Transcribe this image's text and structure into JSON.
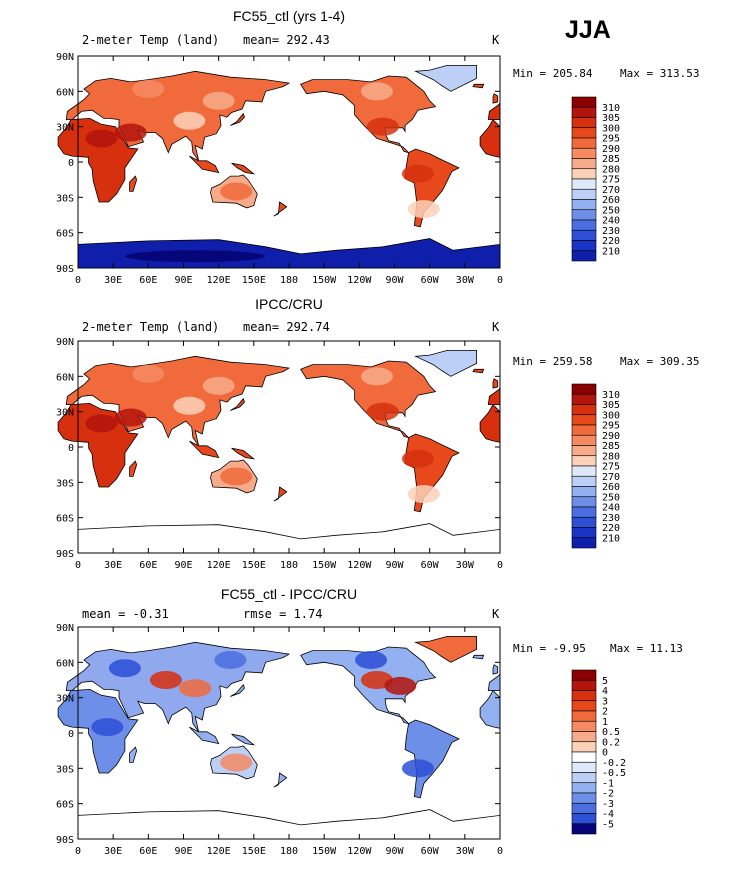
{
  "season": "JJA",
  "units": "K",
  "chart_data": [
    {
      "type": "heatmap",
      "title": "FC55_ctl (yrs 1-4)",
      "left_subtitle": "2-meter Temp (land)",
      "center_subtitle": "mean= 292.43",
      "units": "K",
      "min_label": "Min = 205.84",
      "max_label": "Max = 313.53",
      "stats": {
        "mean": 292.43,
        "min": 205.84,
        "max": 313.53
      },
      "x_ticks": [
        "0",
        "30E",
        "60E",
        "90E",
        "120E",
        "150E",
        "180",
        "150W",
        "120W",
        "90W",
        "60W",
        "30W",
        "0"
      ],
      "y_ticks": [
        "90N",
        "60N",
        "30N",
        "0",
        "30S",
        "60S",
        "90S"
      ],
      "xlim": [
        0,
        360
      ],
      "ylim": [
        -90,
        90
      ],
      "colorbar_levels": [
        "310",
        "305",
        "300",
        "295",
        "290",
        "285",
        "280",
        "275",
        "270",
        "260",
        "250",
        "240",
        "230",
        "220",
        "210"
      ]
    },
    {
      "type": "heatmap",
      "title": "IPCC/CRU",
      "left_subtitle": "2-meter Temp (land)",
      "center_subtitle": "mean= 292.74",
      "units": "K",
      "min_label": "Min = 259.58",
      "max_label": "Max = 309.35",
      "stats": {
        "mean": 292.74,
        "min": 259.58,
        "max": 309.35
      },
      "x_ticks": [
        "0",
        "30E",
        "60E",
        "90E",
        "120E",
        "150E",
        "180",
        "150W",
        "120W",
        "90W",
        "60W",
        "30W",
        "0"
      ],
      "y_ticks": [
        "90N",
        "60N",
        "30N",
        "0",
        "30S",
        "60S",
        "90S"
      ],
      "xlim": [
        0,
        360
      ],
      "ylim": [
        -90,
        90
      ],
      "colorbar_levels": [
        "310",
        "305",
        "300",
        "295",
        "290",
        "285",
        "280",
        "275",
        "270",
        "260",
        "250",
        "240",
        "230",
        "220",
        "210"
      ]
    },
    {
      "type": "heatmap",
      "title": "FC55_ctl - IPCC/CRU",
      "left_subtitle": "mean =   -0.31",
      "center_subtitle": "rmse =    1.74",
      "units": "K",
      "min_label": "Min =  -9.95",
      "max_label": "Max =  11.13",
      "stats": {
        "mean": -0.31,
        "rmse": 1.74,
        "min": -9.95,
        "max": 11.13
      },
      "x_ticks": [
        "0",
        "30E",
        "60E",
        "90E",
        "120E",
        "150E",
        "180",
        "150W",
        "120W",
        "90W",
        "60W",
        "30W",
        "0"
      ],
      "y_ticks": [
        "90N",
        "60N",
        "30N",
        "0",
        "30S",
        "60S",
        "90S"
      ],
      "xlim": [
        0,
        360
      ],
      "ylim": [
        -90,
        90
      ],
      "colorbar_levels": [
        "5",
        "4",
        "3",
        "2",
        "1",
        "0.5",
        "0.2",
        "0",
        "-0.2",
        "-0.5",
        "-1",
        "-2",
        "-3",
        "-4",
        "-5"
      ]
    }
  ],
  "colors": {
    "warm": [
      "#8b0000",
      "#b3140c",
      "#d6300e",
      "#e8491c",
      "#f06a3c",
      "#f58a63",
      "#f8ab8a",
      "#fbd1b9"
    ],
    "cool": [
      "#dfe9fb",
      "#bcd0f7",
      "#93b1f0",
      "#6d8fe8",
      "#4a6ee0",
      "#2d4fd6",
      "#1a35c6",
      "#101fab",
      "#090f83"
    ],
    "diff_warm": [
      "#8b0000",
      "#b3140c",
      "#d6300e",
      "#e8491c",
      "#f06a3c",
      "#f8ab8a",
      "#fbd1b9"
    ],
    "diff_cool": [
      "#ffffff",
      "#dfe9fb",
      "#bcd0f7",
      "#93b1f0",
      "#6d8fe8",
      "#4a6ee0",
      "#2d4fd6",
      "#101fab",
      "#06067a"
    ]
  }
}
